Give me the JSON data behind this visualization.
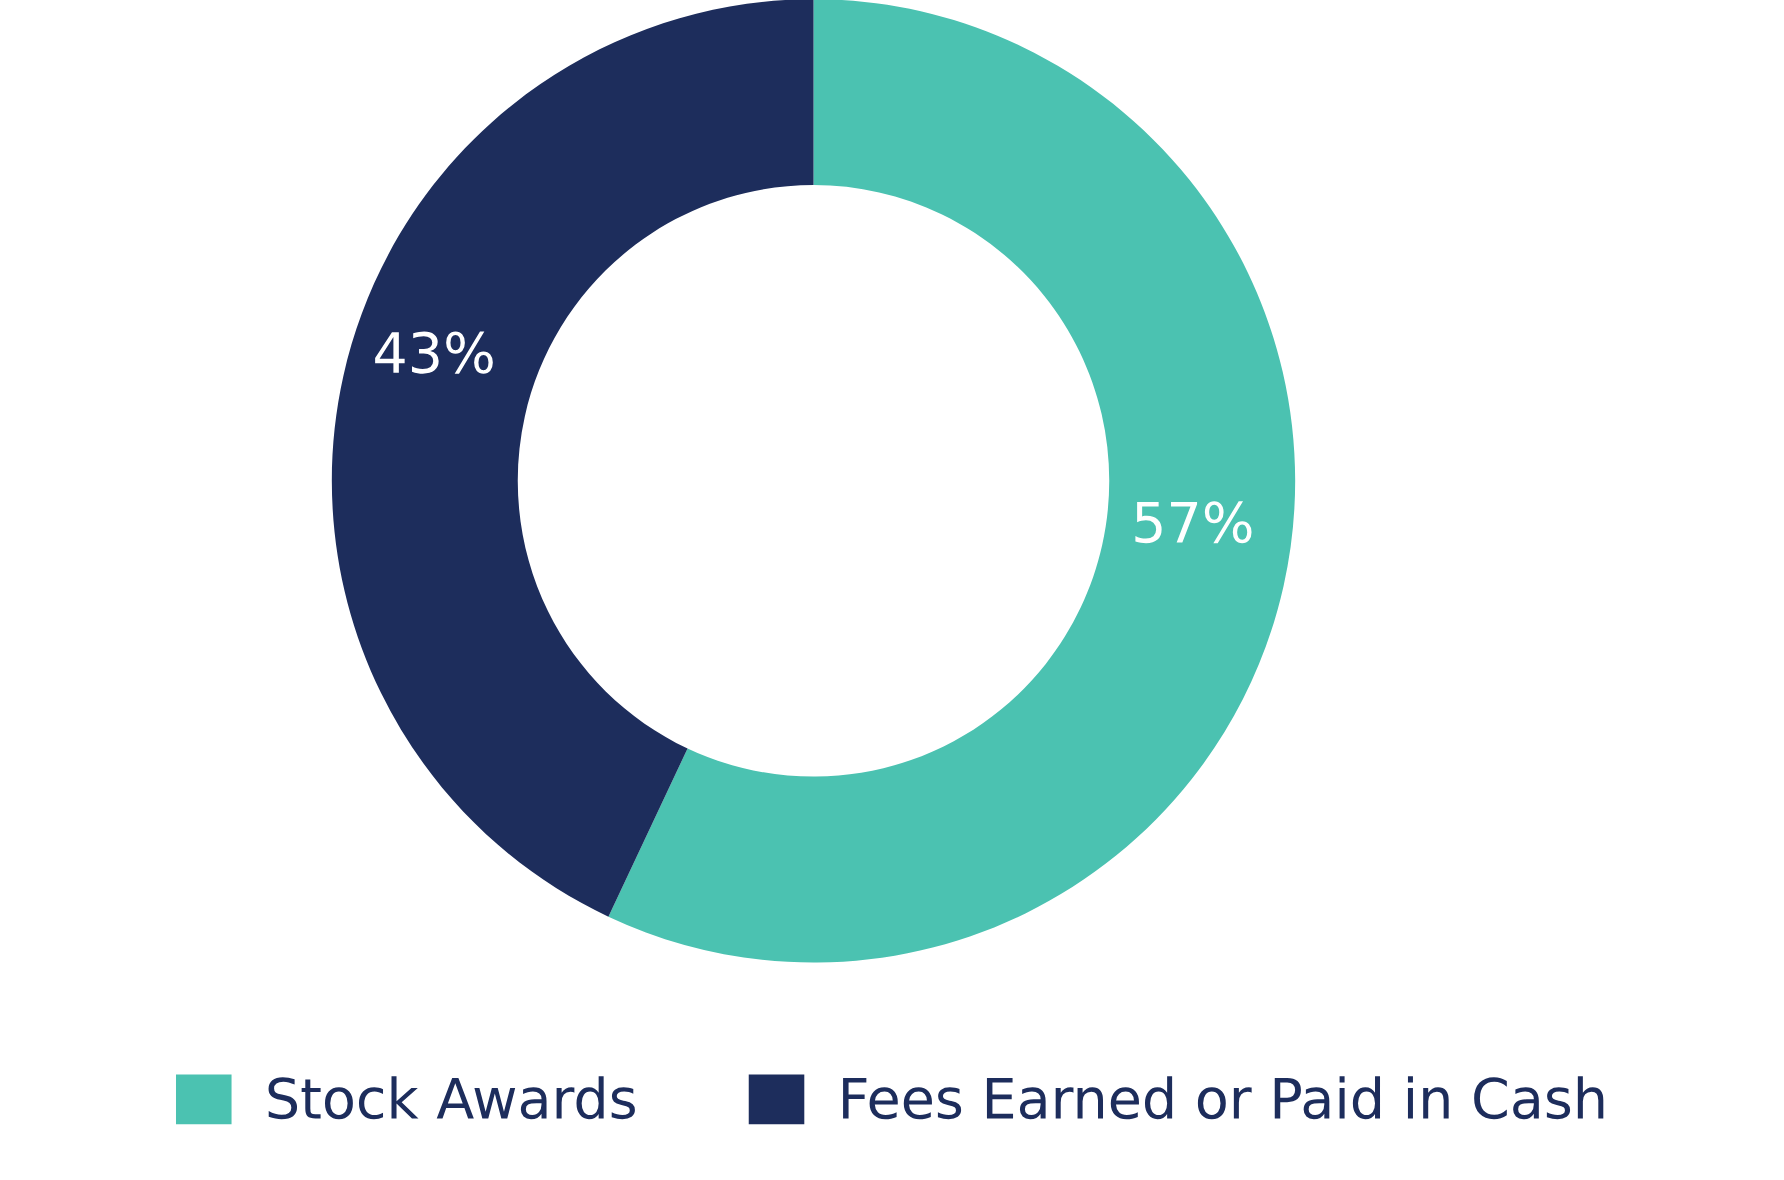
{
  "chart_data": {
    "type": "donut",
    "categories": [
      "Stock Awards",
      "Fees Earned or Paid in Cash"
    ],
    "values": [
      57,
      43
    ],
    "colors": [
      "#4bc2b1",
      "#1d2d5c"
    ],
    "value_labels": [
      "57%",
      "43%"
    ],
    "legend": "bottom"
  }
}
